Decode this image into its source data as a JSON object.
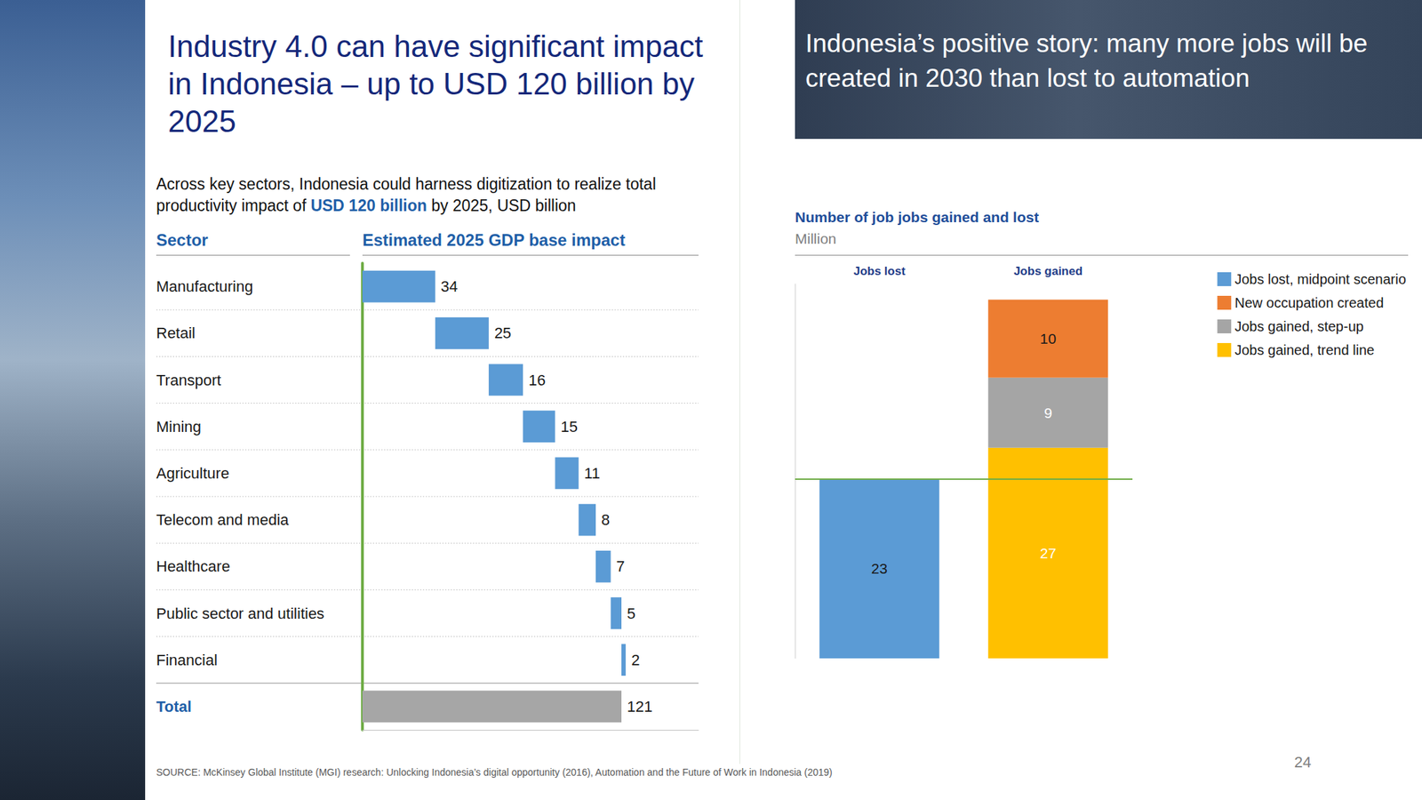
{
  "slide": {
    "title": "Industry 4.0 can have significant impact in Indonesia – up to USD 120 billion by 2025",
    "panel_title": "Indonesia’s positive story: many more jobs will be created in 2030 than lost to automation",
    "source": "SOURCE: McKinsey Global Institute (MGI) research: Unlocking Indonesia’s digital opportunity (2016), Automation and the Future of Work in Indonesia (2019)",
    "page": "24"
  },
  "chart_data": [
    {
      "type": "waterfall",
      "orientation": "horizontal",
      "subtitle": "Across key sectors, Indonesia could harness digitization to realize total productivity impact of USD 120 billion by 2025, USD billion",
      "subtitle_emphasis": "USD 120 billion",
      "ylabel": "Sector",
      "xlabel": "Estimated 2025 GDP base impact",
      "categories": [
        "Manufacturing",
        "Retail",
        "Transport",
        "Mining",
        "Agriculture",
        "Telecom and media",
        "Healthcare",
        "Public sector and utilities",
        "Financial",
        "Total"
      ],
      "values": [
        34,
        25,
        16,
        15,
        11,
        8,
        7,
        5,
        2,
        121
      ],
      "colors": [
        "#5b9bd5",
        "#5b9bd5",
        "#5b9bd5",
        "#5b9bd5",
        "#5b9bd5",
        "#5b9bd5",
        "#5b9bd5",
        "#5b9bd5",
        "#5b9bd5",
        "#a6a6a6"
      ],
      "xlim": [
        0,
        157
      ],
      "tick_labels": false,
      "data_labels": true,
      "grid": false
    },
    {
      "type": "bar",
      "stacked": true,
      "title": "Number of job jobs gained and lost",
      "subtitle": "Million",
      "categories": [
        "Jobs lost",
        "Jobs gained"
      ],
      "series": [
        {
          "name": "Jobs lost, midpoint scenario",
          "color": "#5b9bd5",
          "values": [
            23,
            null
          ]
        },
        {
          "name": "New occupation created",
          "color": "#ed7d31",
          "values": [
            null,
            10
          ]
        },
        {
          "name": "Jobs gained, step-up",
          "color": "#a5a5a5",
          "values": [
            null,
            9
          ]
        },
        {
          "name": "Jobs gained, trend line",
          "color": "#ffc000",
          "values": [
            null,
            27
          ]
        }
      ],
      "ylim": [
        0,
        48
      ],
      "tick_labels": "x",
      "data_labels": true,
      "legend": "right",
      "grid": false
    }
  ]
}
